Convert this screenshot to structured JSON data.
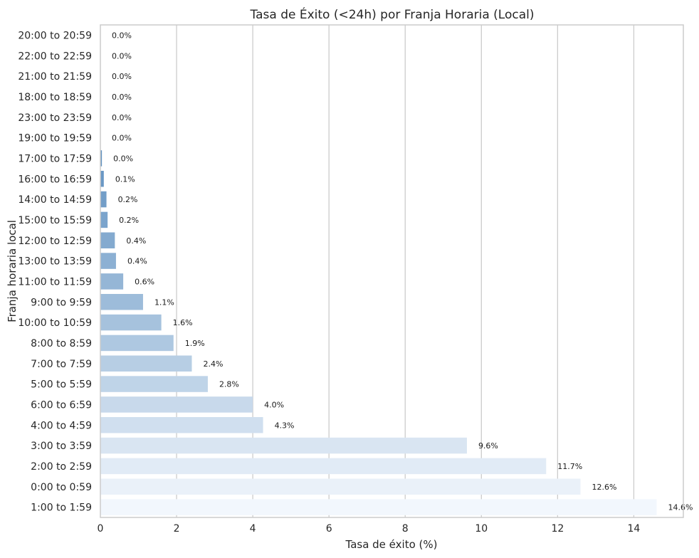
{
  "chart_data": {
    "type": "bar",
    "orientation": "horizontal",
    "title": "Tasa de Éxito (<24h) por Franja Horaria (Local)",
    "xlabel": "Tasa de éxito (%)",
    "ylabel": "Franja horaria local",
    "xlim": [
      0,
      15.3
    ],
    "xticks": [
      0,
      2,
      4,
      6,
      8,
      10,
      12,
      14
    ],
    "grid": "vertical",
    "categories": [
      "20:00 to 20:59",
      "22:00 to 22:59",
      "21:00 to 21:59",
      "18:00 to 18:59",
      "23:00 to 23:59",
      "19:00 to 19:59",
      "17:00 to 17:59",
      "16:00 to 16:59",
      "14:00 to 14:59",
      "15:00 to 15:59",
      "12:00 to 12:59",
      "13:00 to 13:59",
      "11:00 to 11:59",
      "9:00 to 9:59",
      "10:00 to 10:59",
      "8:00 to 8:59",
      "7:00 to 7:59",
      "5:00 to 5:59",
      "6:00 to 6:59",
      "4:00 to 4:59",
      "3:00 to 3:59",
      "2:00 to 2:59",
      "0:00 to 0:59",
      "1:00 to 1:59"
    ],
    "values": [
      0.0,
      0.0,
      0.0,
      0.0,
      0.0,
      0.0,
      0.04,
      0.09,
      0.16,
      0.19,
      0.38,
      0.41,
      0.6,
      1.12,
      1.6,
      1.92,
      2.4,
      2.82,
      4.0,
      4.27,
      9.62,
      11.7,
      12.6,
      14.6
    ],
    "data_labels": [
      "0.0%",
      "0.0%",
      "0.0%",
      "0.0%",
      "0.0%",
      "0.0%",
      "0.0%",
      "0.1%",
      "0.2%",
      "0.2%",
      "0.4%",
      "0.4%",
      "0.6%",
      "1.1%",
      "1.6%",
      "1.9%",
      "2.4%",
      "2.8%",
      "4.0%",
      "4.3%",
      "9.6%",
      "11.7%",
      "12.6%",
      "14.6%"
    ],
    "palette": {
      "dark": "#2f6fac",
      "light": "#f2f7fd"
    }
  }
}
